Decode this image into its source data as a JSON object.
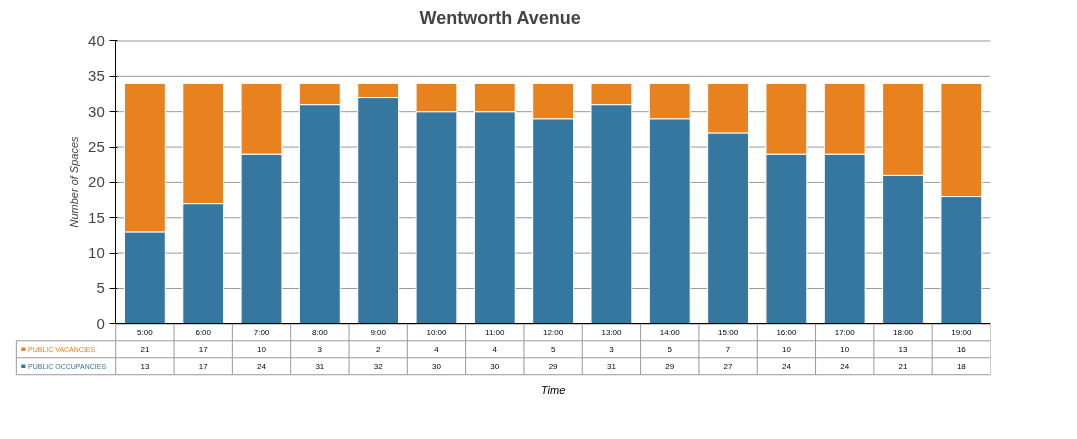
{
  "chart_data": {
    "type": "bar",
    "title": "Wentworth Avenue",
    "xlabel": "Time",
    "ylabel": "Number of Spaces",
    "categories": [
      "5:00",
      "6:00",
      "7:00",
      "8:00",
      "9:00",
      "10:00",
      "11:00",
      "12:00",
      "13:00",
      "14:00",
      "15:00",
      "16:00",
      "17:00",
      "18:00",
      "19:00"
    ],
    "stacked": true,
    "series": [
      {
        "name": "PUBLIC OCCUPANCIES",
        "color": "#35779e",
        "values": [
          13,
          17,
          24,
          31,
          32,
          30,
          30,
          29,
          31,
          29,
          27,
          24,
          24,
          21,
          18
        ]
      },
      {
        "name": "PUBLIC VACANCIES",
        "color": "#e8821e",
        "values": [
          21,
          17,
          10,
          3,
          2,
          4,
          4,
          5,
          3,
          5,
          7,
          10,
          10,
          13,
          16
        ]
      }
    ],
    "ylim": [
      0,
      40
    ],
    "yticks": [
      0,
      5,
      10,
      15,
      20,
      25,
      30,
      35,
      40
    ],
    "grid": "y",
    "legend": "bottom",
    "data_labels": true
  }
}
